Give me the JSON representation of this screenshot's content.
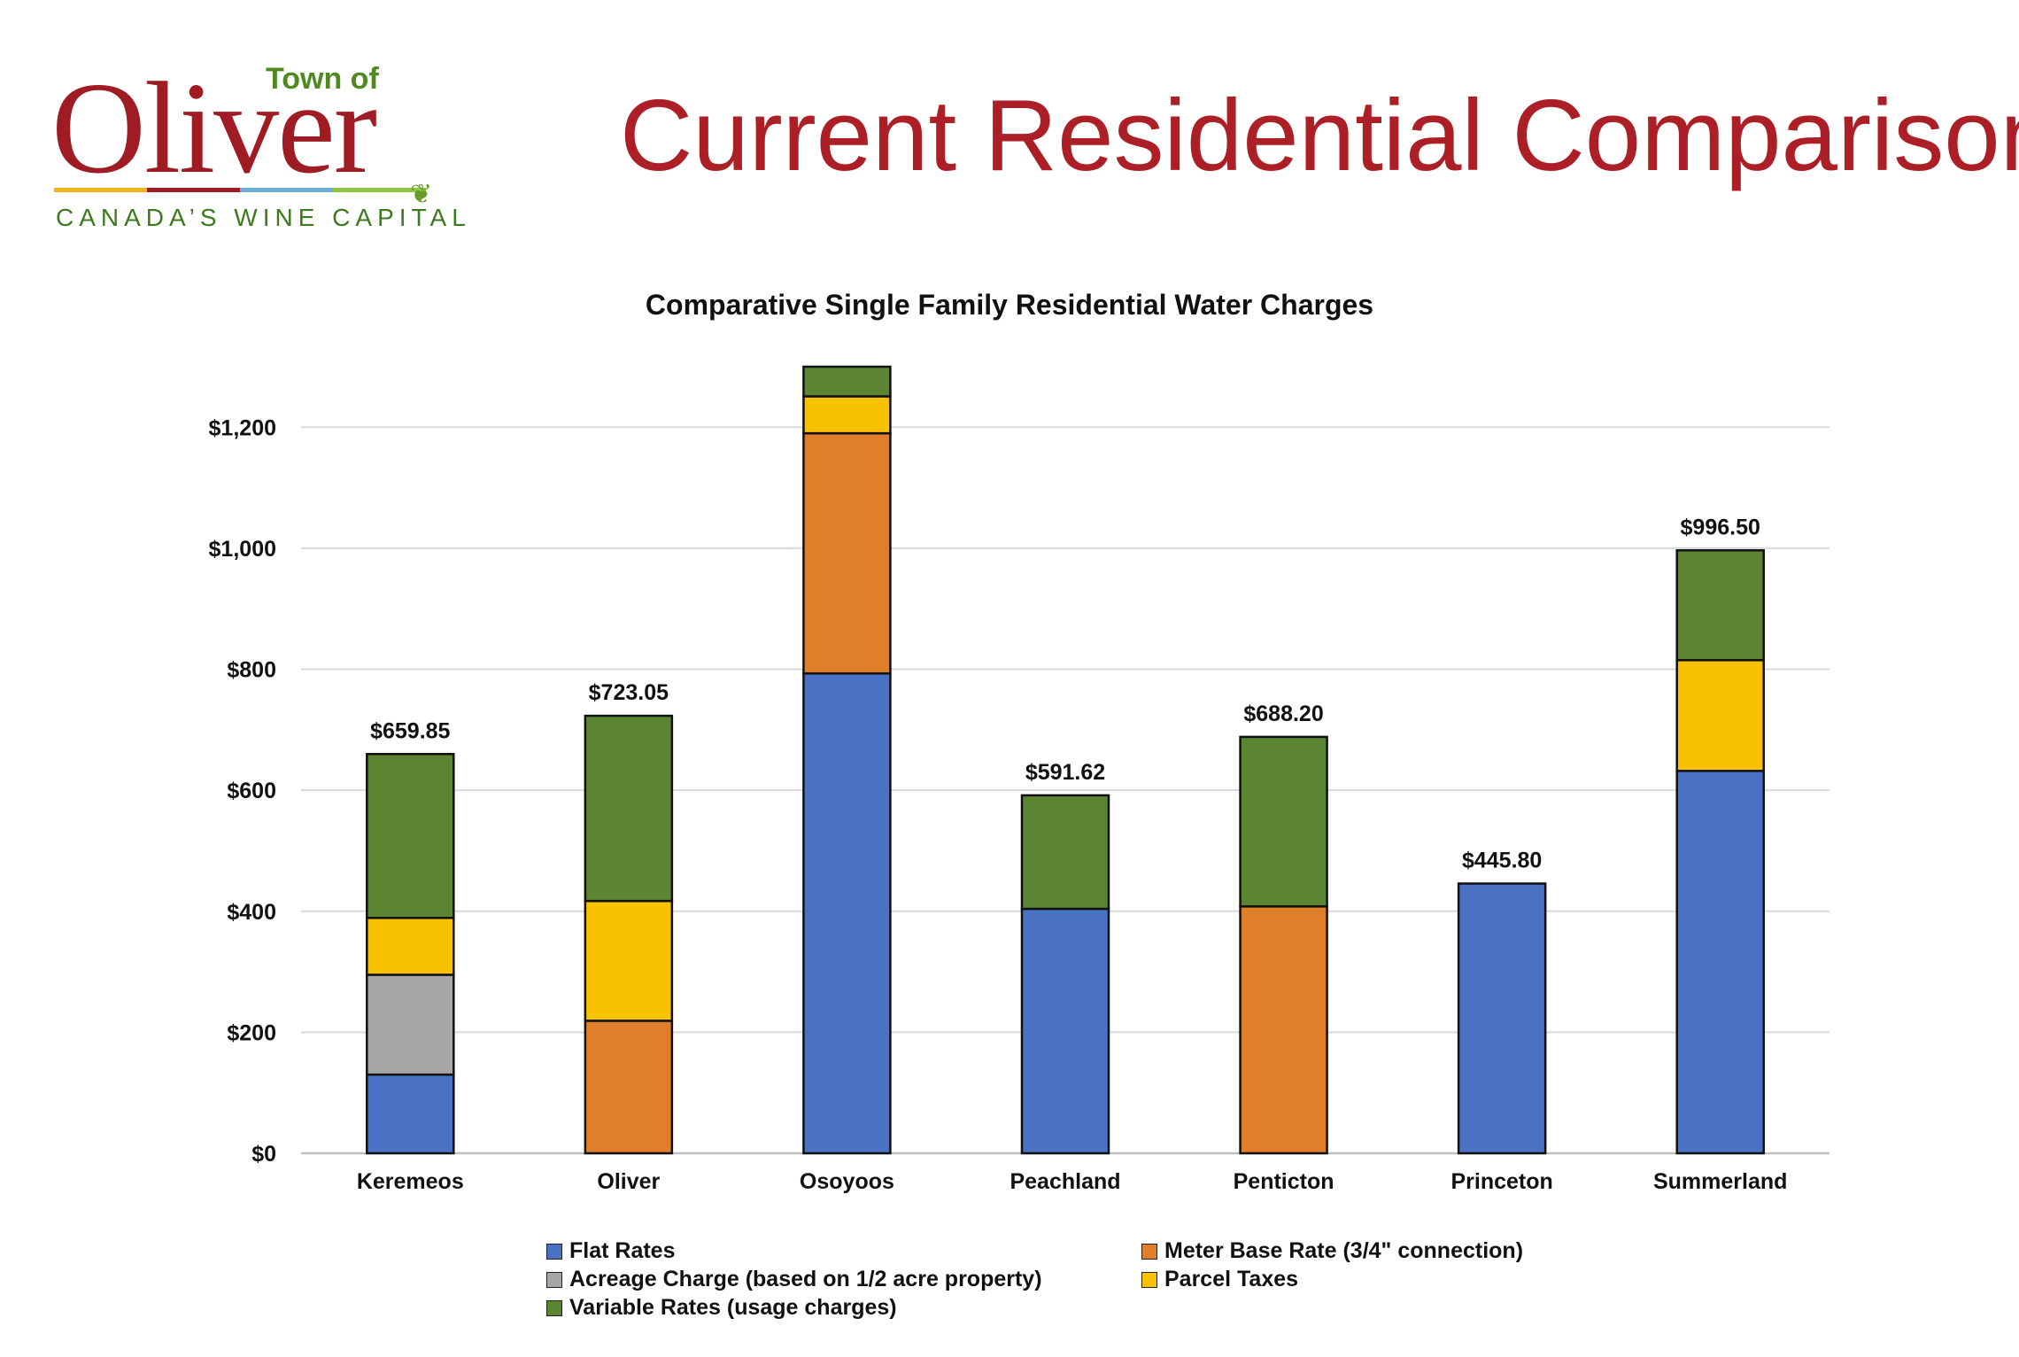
{
  "logo": {
    "prefix": "Town of",
    "name": "Oliver",
    "tagline": "CANADA’S WINE CAPITAL",
    "bar_colors": [
      "#f2b31a",
      "#a01c24",
      "#6aaed6",
      "#8dc63f"
    ]
  },
  "page": {
    "title": "Current Residential Comparisons"
  },
  "colors": {
    "Flat Rates": "#4a72c4",
    "Meter Base Rate (3/4\" connection)": "#e07f2a",
    "Acreage Charge (based on 1/2 acre property)": "#a6a6a6",
    "Parcel Taxes": "#f9c200",
    "Variable Rates (usage charges)": "#5b8532"
  },
  "chart_data": {
    "type": "bar",
    "stacked": true,
    "title": "Comparative Single Family Residential Water Charges",
    "xlabel": "",
    "ylabel": "",
    "ylim": [
      0,
      1300
    ],
    "yticks": [
      0,
      200,
      400,
      600,
      800,
      1000,
      1200
    ],
    "ytick_labels": [
      "$0",
      "$200",
      "$400",
      "$600",
      "$800",
      "$1,000",
      "$1,200"
    ],
    "grid": true,
    "legend_position": "bottom",
    "categories": [
      "Keremeos",
      "Oliver",
      "Osoyoos",
      "Peachland",
      "Penticton",
      "Princeton",
      "Summerland"
    ],
    "total_labels": [
      "$659.85",
      "$723.05",
      "",
      "$591.62",
      "$688.20",
      "$445.80",
      "$996.50"
    ],
    "series": [
      {
        "name": "Flat Rates",
        "values": [
          130,
          0,
          793,
          404,
          0,
          445.8,
          632
        ]
      },
      {
        "name": "Meter Base Rate (3/4\" connection)",
        "values": [
          0,
          219,
          397,
          0,
          408,
          0,
          0
        ]
      },
      {
        "name": "Acreage Charge (based on 1/2 acre property)",
        "values": [
          165,
          0,
          0,
          0,
          0,
          0,
          0
        ]
      },
      {
        "name": "Parcel Taxes",
        "values": [
          94,
          198,
          61,
          0,
          0,
          0,
          183
        ]
      },
      {
        "name": "Variable Rates (usage charges)",
        "values": [
          270.85,
          306.05,
          49,
          187.62,
          280.2,
          0,
          181.5
        ]
      }
    ]
  }
}
